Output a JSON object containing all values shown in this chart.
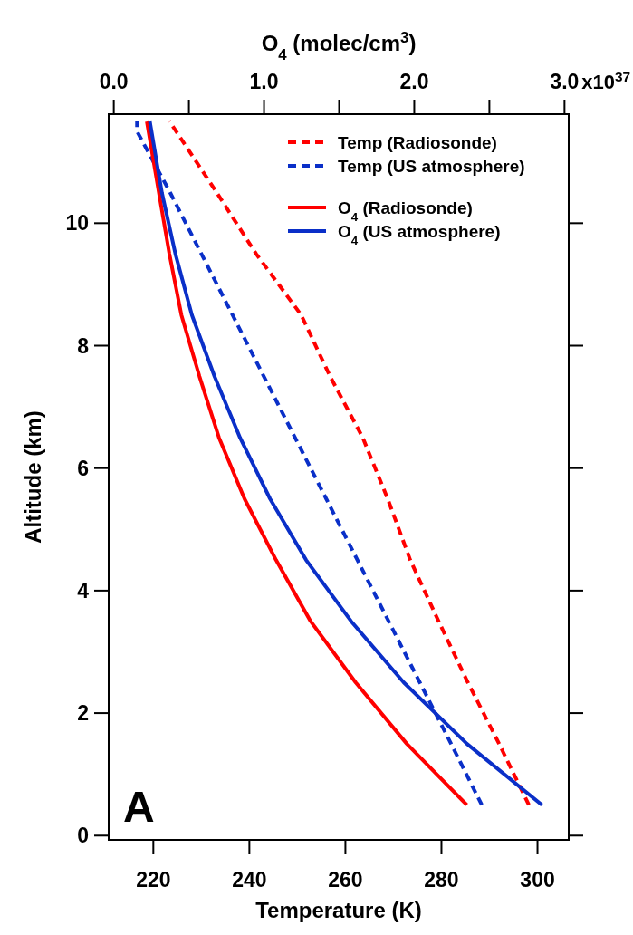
{
  "chart_data": {
    "type": "line",
    "xlabel": "Temperature (K)",
    "ylabel": "Altitude (km)",
    "x2label": "O$_{4}$ (molec/cm$^{3}$)",
    "xlim": [
      210.7,
      306.5
    ],
    "xticks": [
      220,
      240,
      260,
      280,
      300
    ],
    "x2lim": [
      -0.034,
      3.028
    ],
    "x2ticks": [
      {
        "value": 0,
        "label": "0.0"
      },
      {
        "value": 0.5,
        "label": null
      },
      {
        "value": 1,
        "label": "1.0"
      },
      {
        "value": 1.5,
        "label": null
      },
      {
        "value": 2,
        "label": "2.0"
      },
      {
        "value": 2.5,
        "label": null
      },
      {
        "value": 3,
        "label": "3.0"
      }
    ],
    "ylim": [
      -0.07,
      11.78
    ],
    "yticks": [
      0,
      2,
      4,
      6,
      8,
      10
    ],
    "legend": "top right",
    "annotations": [
      "A",
      "x10$^{37}$"
    ],
    "series": [
      {
        "name": "Temp (Radiosonde)",
        "color": "#ff0000",
        "line_style": "dashed",
        "x": [
          298.2,
          292.0,
          285.5,
          279.4,
          273.5,
          268.8,
          263.6,
          256.8,
          250.8,
          241.4,
          233.2,
          223.4
        ],
        "values": [
          0.5,
          1.5,
          2.5,
          3.5,
          4.5,
          5.5,
          6.5,
          7.5,
          8.5,
          9.5,
          10.5,
          11.66
        ]
      },
      {
        "name": "Temp (US atmosphere)",
        "color": "#0a2fc8",
        "line_style": "dashed",
        "x": [
          288.4,
          282.0,
          275.5,
          269.0,
          262.5,
          256.0,
          249.5,
          243.0,
          236.5,
          230.0,
          223.5,
          216.6,
          216.6
        ],
        "values": [
          0.5,
          1.5,
          2.5,
          3.5,
          4.5,
          5.5,
          6.5,
          7.5,
          8.5,
          9.5,
          10.5,
          11.5,
          11.66
        ]
      },
      {
        "name": "O$_{4}$ (Radiosonde)",
        "color": "#ff0000",
        "line_style": "solid",
        "axis": "x2",
        "x": [
          2.35,
          1.95,
          1.61,
          1.31,
          1.08,
          0.87,
          0.7,
          0.57,
          0.45,
          0.37,
          0.3,
          0.22
        ],
        "values": [
          0.5,
          1.5,
          2.5,
          3.5,
          4.5,
          5.5,
          6.5,
          7.5,
          8.5,
          9.5,
          10.5,
          11.66
        ]
      },
      {
        "name": "O$_{4}$ (US atmosphere)",
        "color": "#0a2fc8",
        "line_style": "solid",
        "axis": "x2",
        "x": [
          2.85,
          2.35,
          1.93,
          1.58,
          1.28,
          1.04,
          0.84,
          0.67,
          0.52,
          0.41,
          0.32,
          0.24
        ],
        "values": [
          0.5,
          1.5,
          2.5,
          3.5,
          4.5,
          5.5,
          6.5,
          7.5,
          8.5,
          9.5,
          10.5,
          11.66
        ]
      }
    ]
  }
}
